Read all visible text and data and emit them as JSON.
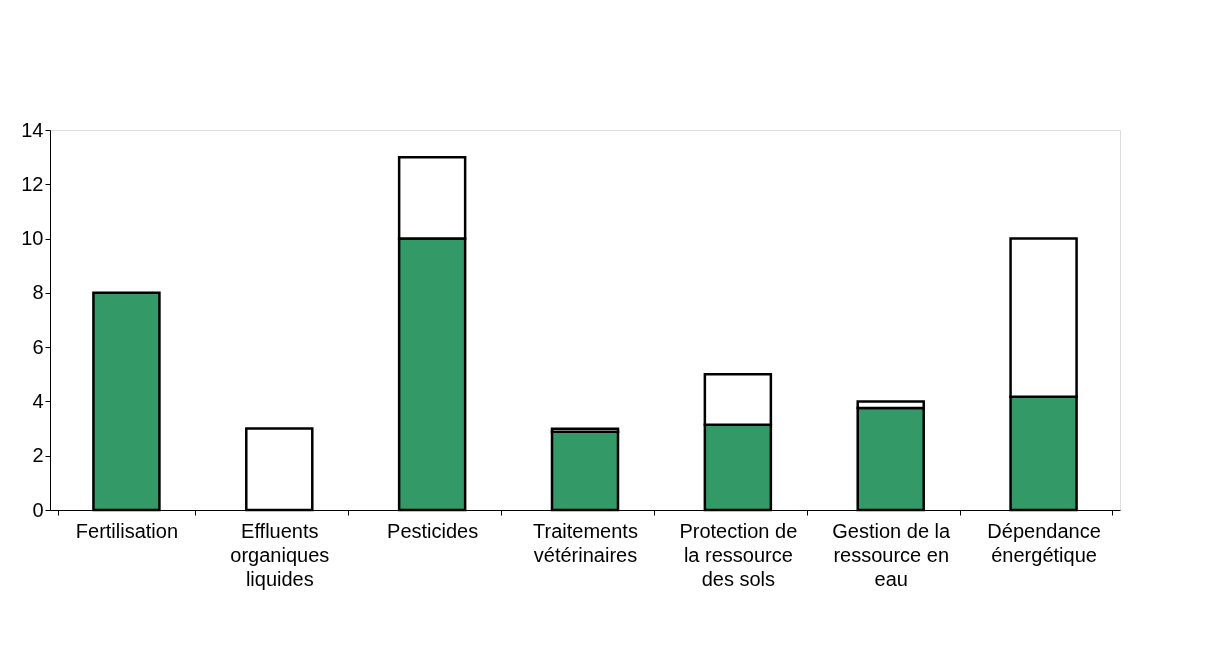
{
  "chart_data": {
    "type": "bar",
    "stacked": true,
    "categories": [
      "Fertilisation",
      "Effluents\norganiques\nliquides",
      "Pesticides",
      "Traitements\nvétérinaires",
      "Protection de\nla ressource\ndes sols",
      "Gestion de la\nressource en\neau",
      "Dépendance\nénergétique"
    ],
    "series": [
      {
        "color": "#339966",
        "values": [
          8,
          0,
          10,
          2.88,
          3.14,
          3.76,
          4.17
        ]
      },
      {
        "color": "#ffffff",
        "values": [
          0,
          3,
          3,
          0.11,
          1.86,
          0.24,
          5.83
        ]
      }
    ],
    "ylim": [
      0,
      14
    ],
    "yticks": [
      0,
      2,
      4,
      6,
      8,
      10,
      12,
      14
    ],
    "grid": false,
    "legend": false
  }
}
